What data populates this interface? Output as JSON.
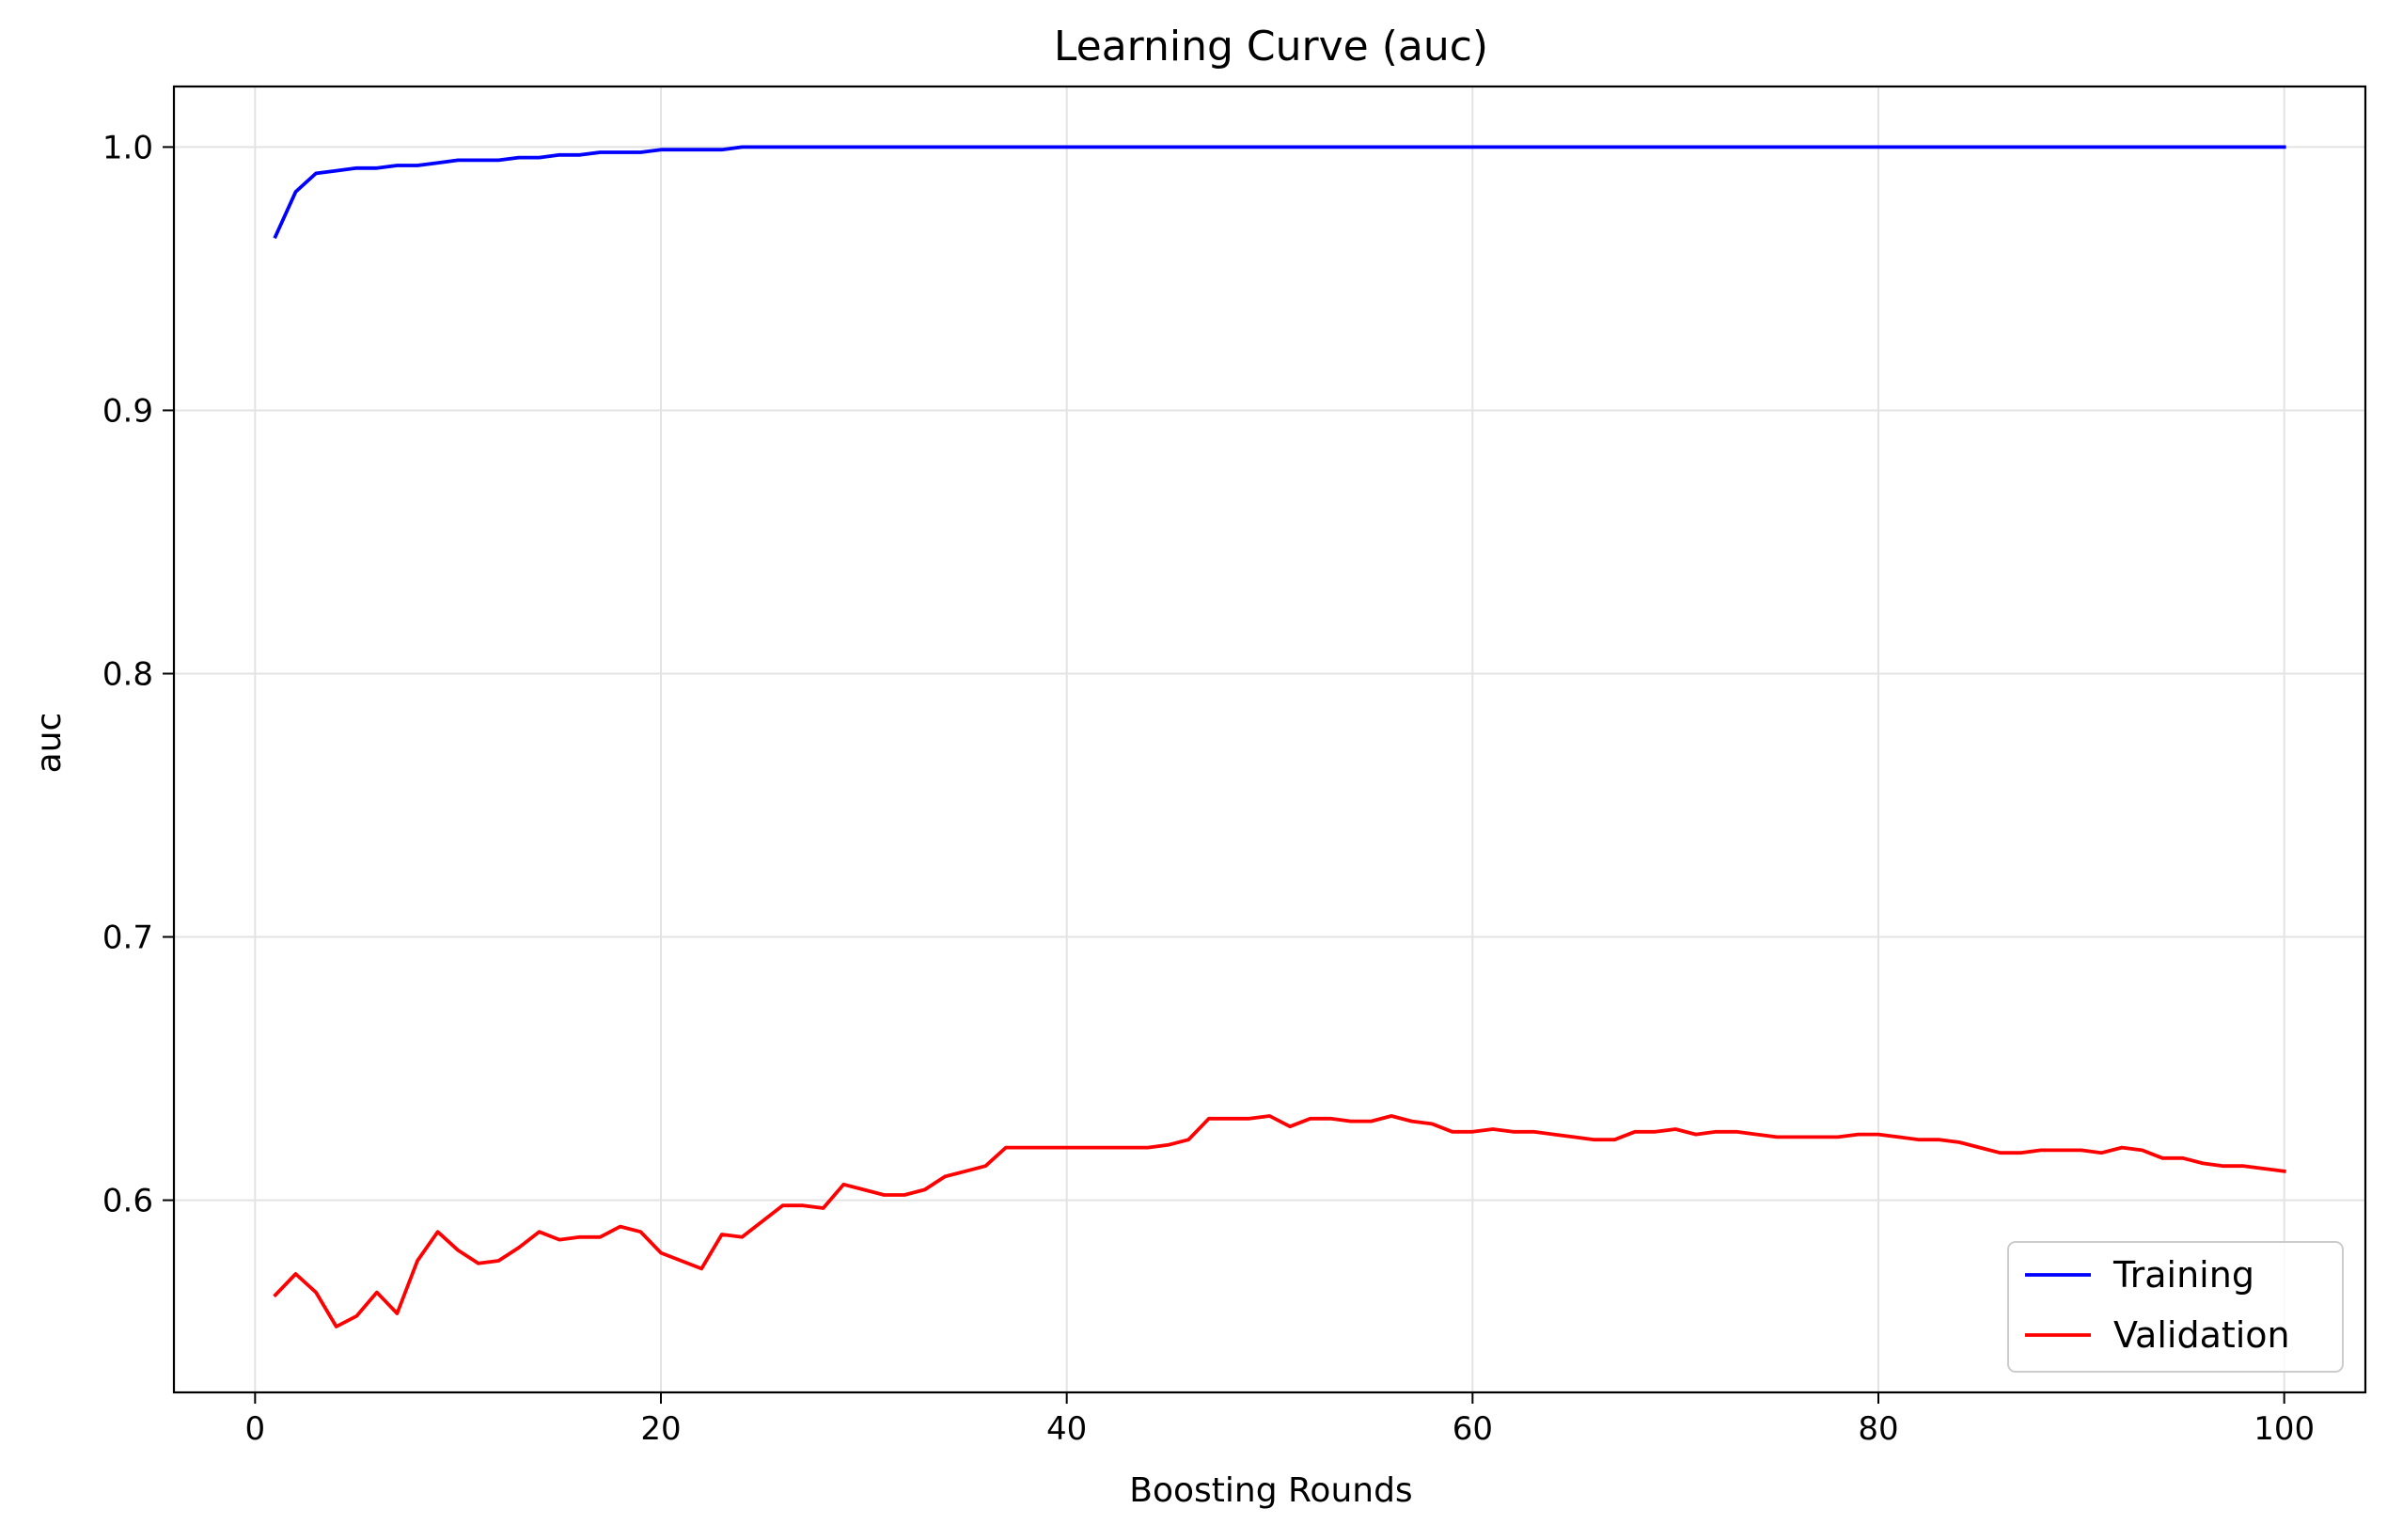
{
  "chart_data": {
    "type": "line",
    "title": "Learning Curve (auc)",
    "xlabel": "Boosting Rounds",
    "ylabel": "auc",
    "xlim": [
      -4,
      104
    ],
    "ylim": [
      0.527,
      1.023
    ],
    "xticks": [
      0,
      20,
      40,
      60,
      80,
      100
    ],
    "xtick_labels": [
      "0",
      "20",
      "40",
      "60",
      "80",
      "100"
    ],
    "yticks": [
      0.6,
      0.7,
      0.8,
      0.9,
      1.0
    ],
    "ytick_labels": [
      "0.6",
      "0.7",
      "0.8",
      "0.9",
      "1.0"
    ],
    "grid": true,
    "legend_position": "bottom-right",
    "x": [
      1,
      2,
      3,
      4,
      5,
      6,
      7,
      8,
      9,
      10,
      11,
      12,
      13,
      14,
      15,
      16,
      17,
      18,
      19,
      20,
      21,
      22,
      23,
      24,
      25,
      26,
      27,
      28,
      29,
      30,
      31,
      32,
      33,
      34,
      35,
      36,
      37,
      38,
      39,
      40,
      41,
      42,
      43,
      44,
      45,
      46,
      47,
      48,
      49,
      50,
      51,
      52,
      53,
      54,
      55,
      56,
      57,
      58,
      59,
      60,
      61,
      62,
      63,
      64,
      65,
      66,
      67,
      68,
      69,
      70,
      71,
      72,
      73,
      74,
      75,
      76,
      77,
      78,
      79,
      80,
      81,
      82,
      83,
      84,
      85,
      86,
      87,
      88,
      89,
      90,
      91,
      92,
      93,
      94,
      95,
      96,
      97,
      98,
      99,
      100
    ],
    "series": [
      {
        "name": "Training",
        "color": "#0000ff",
        "values": [
          0.966,
          0.983,
          0.99,
          0.991,
          0.992,
          0.992,
          0.993,
          0.993,
          0.994,
          0.995,
          0.995,
          0.995,
          0.996,
          0.996,
          0.997,
          0.997,
          0.998,
          0.998,
          0.998,
          0.999,
          0.999,
          0.999,
          0.999,
          1.0,
          1.0,
          1.0,
          1.0,
          1.0,
          1.0,
          1.0,
          1.0,
          1.0,
          1.0,
          1.0,
          1.0,
          1.0,
          1.0,
          1.0,
          1.0,
          1.0,
          1.0,
          1.0,
          1.0,
          1.0,
          1.0,
          1.0,
          1.0,
          1.0,
          1.0,
          1.0,
          1.0,
          1.0,
          1.0,
          1.0,
          1.0,
          1.0,
          1.0,
          1.0,
          1.0,
          1.0,
          1.0,
          1.0,
          1.0,
          1.0,
          1.0,
          1.0,
          1.0,
          1.0,
          1.0,
          1.0,
          1.0,
          1.0,
          1.0,
          1.0,
          1.0,
          1.0,
          1.0,
          1.0,
          1.0,
          1.0,
          1.0,
          1.0,
          1.0,
          1.0,
          1.0,
          1.0,
          1.0,
          1.0,
          1.0,
          1.0,
          1.0,
          1.0,
          1.0,
          1.0,
          1.0,
          1.0,
          1.0,
          1.0,
          1.0,
          1.0
        ]
      },
      {
        "name": "Validation",
        "color": "#ff0000",
        "values": [
          0.564,
          0.572,
          0.565,
          0.552,
          0.556,
          0.565,
          0.557,
          0.577,
          0.588,
          0.581,
          0.576,
          0.577,
          0.582,
          0.588,
          0.585,
          0.586,
          0.586,
          0.59,
          0.588,
          0.58,
          0.577,
          0.574,
          0.587,
          0.586,
          0.592,
          0.598,
          0.598,
          0.597,
          0.606,
          0.604,
          0.602,
          0.602,
          0.604,
          0.609,
          0.611,
          0.613,
          0.62,
          0.62,
          0.62,
          0.62,
          0.62,
          0.62,
          0.62,
          0.62,
          0.621,
          0.623,
          0.631,
          0.631,
          0.631,
          0.632,
          0.628,
          0.631,
          0.631,
          0.63,
          0.63,
          0.632,
          0.63,
          0.629,
          0.626,
          0.626,
          0.627,
          0.626,
          0.626,
          0.625,
          0.624,
          0.623,
          0.623,
          0.626,
          0.626,
          0.627,
          0.625,
          0.626,
          0.626,
          0.625,
          0.624,
          0.624,
          0.624,
          0.624,
          0.625,
          0.625,
          0.624,
          0.623,
          0.623,
          0.622,
          0.62,
          0.618,
          0.618,
          0.619,
          0.619,
          0.619,
          0.618,
          0.62,
          0.619,
          0.616,
          0.616,
          0.614,
          0.613,
          0.613,
          0.612,
          0.611
        ]
      }
    ]
  }
}
